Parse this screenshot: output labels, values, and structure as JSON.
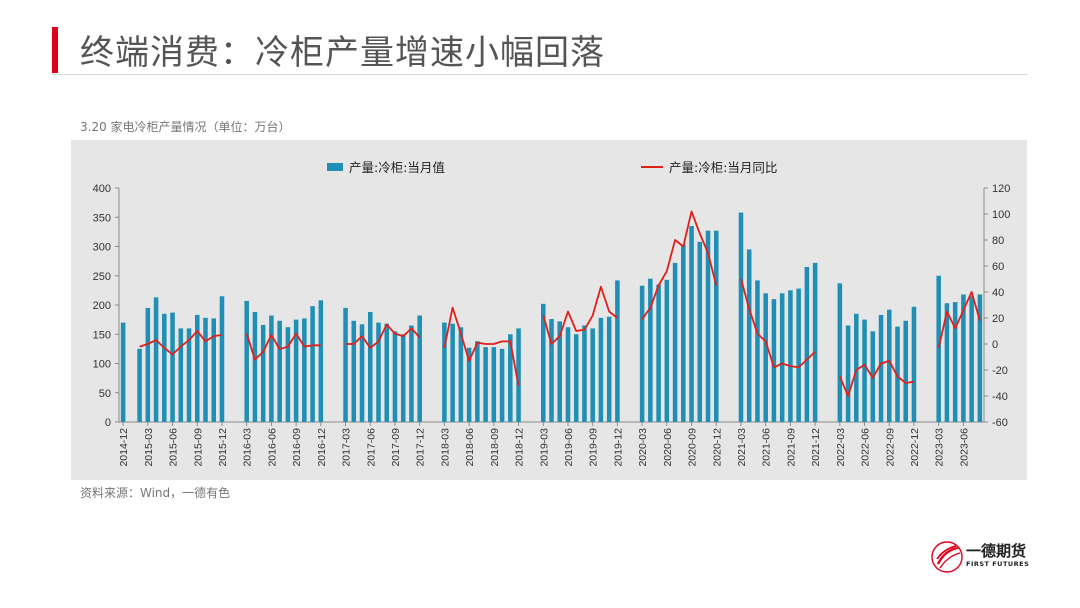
{
  "page": {
    "title": "终端消费：冷柜产量增速小幅回落",
    "subtitle": "3.20 家电冷柜产量情况（单位：万台）",
    "source": "资料来源：Wind，一德有色",
    "logo": {
      "name": "一德期货",
      "sub": "FIRST FUTURES"
    }
  },
  "colors": {
    "bar": "#1f8fb5",
    "line": "#e0201b",
    "accent": "#e0001b",
    "panel": "#e6e6e6"
  },
  "chart_data": {
    "type": "bar",
    "title": "",
    "xlabel": "",
    "ylabel": "",
    "ylim": [
      0,
      400
    ],
    "y2lim": [
      -60,
      120
    ],
    "yticks": [
      0,
      50,
      100,
      150,
      200,
      250,
      300,
      350,
      400
    ],
    "y2ticks": [
      -60,
      -40,
      -20,
      0,
      20,
      40,
      60,
      80,
      100,
      120
    ],
    "grid": false,
    "legend": "top",
    "x_tick_labels": [
      "2014-12",
      "2015-03",
      "2015-06",
      "2015-09",
      "2015-12",
      "2016-03",
      "2016-06",
      "2016-09",
      "2016-12",
      "2017-03",
      "2017-06",
      "2017-09",
      "2017-12",
      "2018-03",
      "2018-06",
      "2018-09",
      "2018-12",
      "2019-03",
      "2019-06",
      "2019-09",
      "2019-12",
      "2020-03",
      "2020-06",
      "2020-09",
      "2020-12",
      "2021-03",
      "2021-06",
      "2021-09",
      "2021-12",
      "2022-03",
      "2022-06",
      "2022-09",
      "2022-12",
      "2023-03",
      "2023-06"
    ],
    "categories": [
      "2014-12",
      "2015-01",
      "2015-02",
      "2015-03",
      "2015-04",
      "2015-05",
      "2015-06",
      "2015-07",
      "2015-08",
      "2015-09",
      "2015-10",
      "2015-11",
      "2015-12",
      "2016-01",
      "2016-02",
      "2016-03",
      "2016-04",
      "2016-05",
      "2016-06",
      "2016-07",
      "2016-08",
      "2016-09",
      "2016-10",
      "2016-11",
      "2016-12",
      "2017-01",
      "2017-02",
      "2017-03",
      "2017-04",
      "2017-05",
      "2017-06",
      "2017-07",
      "2017-08",
      "2017-09",
      "2017-10",
      "2017-11",
      "2017-12",
      "2018-01",
      "2018-02",
      "2018-03",
      "2018-04",
      "2018-05",
      "2018-06",
      "2018-07",
      "2018-08",
      "2018-09",
      "2018-10",
      "2018-11",
      "2018-12",
      "2019-01",
      "2019-02",
      "2019-03",
      "2019-04",
      "2019-05",
      "2019-06",
      "2019-07",
      "2019-08",
      "2019-09",
      "2019-10",
      "2019-11",
      "2019-12",
      "2020-01",
      "2020-02",
      "2020-03",
      "2020-04",
      "2020-05",
      "2020-06",
      "2020-07",
      "2020-08",
      "2020-09",
      "2020-10",
      "2020-11",
      "2020-12",
      "2021-01",
      "2021-02",
      "2021-03",
      "2021-04",
      "2021-05",
      "2021-06",
      "2021-07",
      "2021-08",
      "2021-09",
      "2021-10",
      "2021-11",
      "2021-12",
      "2022-01",
      "2022-02",
      "2022-03",
      "2022-04",
      "2022-05",
      "2022-06",
      "2022-07",
      "2022-08",
      "2022-09",
      "2022-10",
      "2022-11",
      "2022-12",
      "2023-01",
      "2023-02",
      "2023-03",
      "2023-04",
      "2023-05",
      "2023-06",
      "2023-07",
      "2023-08"
    ],
    "series": [
      {
        "name": "产量:冷柜:当月值",
        "type": "bar",
        "axis": "left",
        "values": [
          170,
          null,
          125,
          195,
          213,
          185,
          187,
          160,
          160,
          183,
          178,
          177,
          215,
          null,
          null,
          207,
          188,
          166,
          182,
          173,
          162,
          175,
          177,
          198,
          208,
          null,
          null,
          195,
          173,
          167,
          188,
          170,
          168,
          155,
          150,
          165,
          182,
          null,
          null,
          170,
          168,
          162,
          127,
          138,
          128,
          128,
          125,
          150,
          160,
          null,
          null,
          202,
          176,
          172,
          162,
          150,
          165,
          160,
          178,
          180,
          242,
          null,
          null,
          233,
          245,
          235,
          243,
          272,
          303,
          335,
          308,
          327,
          327,
          null,
          null,
          358,
          295,
          242,
          220,
          210,
          220,
          225,
          228,
          265,
          272,
          null,
          null,
          237,
          165,
          185,
          175,
          155,
          183,
          192,
          163,
          173,
          197,
          null,
          null,
          250,
          203,
          205,
          218,
          215,
          218
        ]
      },
      {
        "name": "产量:冷柜:当月同比",
        "type": "line",
        "axis": "right",
        "values": [
          0,
          null,
          -2,
          0,
          3,
          -3,
          -8,
          -2,
          3,
          10,
          2,
          6,
          7,
          null,
          null,
          8,
          -12,
          -6,
          7,
          -4,
          -2,
          8,
          -2,
          -1,
          -1,
          null,
          null,
          0,
          0,
          6,
          -3,
          2,
          15,
          8,
          6,
          12,
          5,
          null,
          null,
          -3,
          28,
          8,
          -13,
          1,
          0,
          0,
          2,
          2,
          -32,
          null,
          null,
          22,
          0,
          6,
          25,
          10,
          11,
          22,
          44,
          25,
          20,
          null,
          null,
          19,
          28,
          45,
          56,
          80,
          75,
          102,
          85,
          70,
          45,
          null,
          null,
          50,
          27,
          8,
          2,
          -18,
          -15,
          -17,
          -18,
          -12,
          -6,
          null,
          null,
          -25,
          -40,
          -20,
          -16,
          -26,
          -15,
          -13,
          -25,
          -30,
          -29,
          null,
          null,
          -3,
          25,
          12,
          26,
          40,
          18
        ]
      }
    ]
  }
}
